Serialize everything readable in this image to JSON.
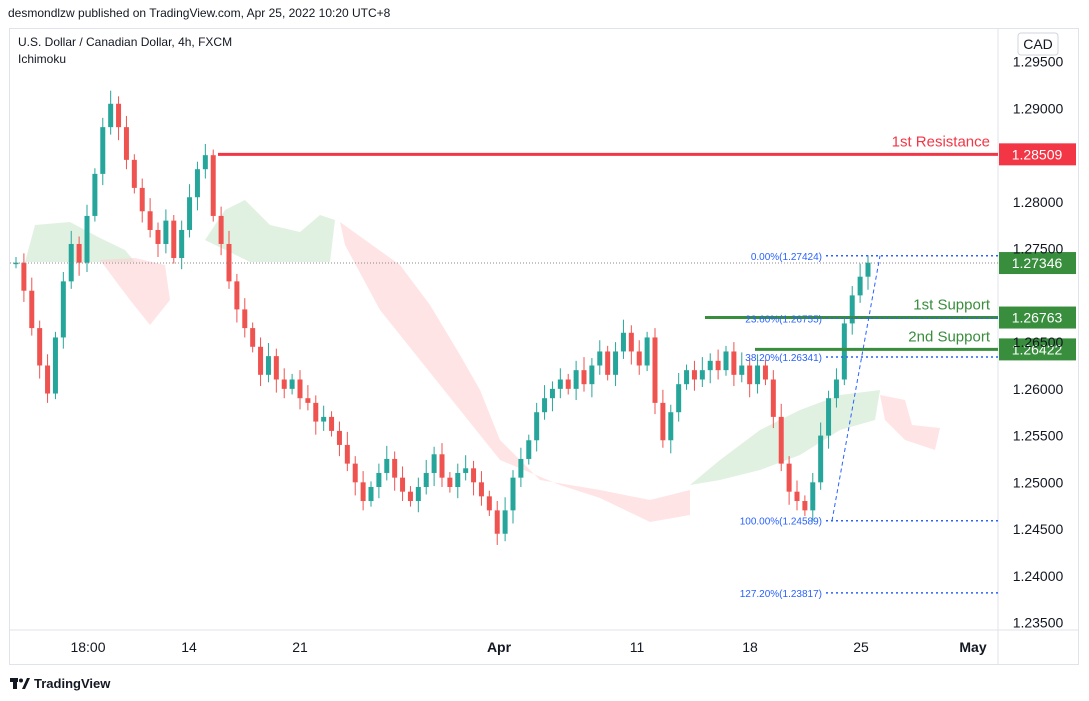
{
  "header": {
    "publish_line": "desmondlzw published on TradingView.com, Apr 25, 2022 10:20 UTC+8"
  },
  "footer": {
    "brand": "TradingView"
  },
  "chart_data": {
    "type": "candlestick",
    "symbol_line": "U.S. Dollar / Canadian Dollar, 4h, FXCM",
    "indicator": "Ichimoku",
    "currency": "CAD",
    "ylim": [
      1.2342,
      1.2985
    ],
    "y_ticks": [
      "1.29500",
      "1.29000",
      "1.28000",
      "1.27500",
      "1.26500",
      "1.26000",
      "1.25500",
      "1.25000",
      "1.24500",
      "1.24000",
      "1.23500"
    ],
    "x_ticks": [
      "18:00",
      "14",
      "21",
      "Apr",
      "11",
      "18",
      "25",
      "May"
    ],
    "colors": {
      "up": "#26a69a",
      "down": "#ef5350",
      "resistance": "#f23645",
      "support": "#388e3c",
      "fib": "#2962ff",
      "cloud_up": "#c8e6c9",
      "cloud_down": "#ffcdd2"
    },
    "levels": [
      {
        "label": "1st Resistance",
        "price": "1.28509",
        "value": 1.28509,
        "kind": "resistance"
      },
      {
        "label": "1st Support",
        "price": "1.26763",
        "value": 1.26763,
        "kind": "support"
      },
      {
        "label": "2nd Support",
        "price": "1.26422",
        "value": 1.26422,
        "kind": "support"
      }
    ],
    "current_price": {
      "label": "1.27346",
      "value": 1.27346
    },
    "fib_levels": [
      {
        "label": "0.00%(1.27424)",
        "value": 1.27424
      },
      {
        "label": "23.60%(1.26755)",
        "value": 1.26755
      },
      {
        "label": "38.20%(1.26341)",
        "value": 1.26341
      },
      {
        "label": "100.00%(1.24589)",
        "value": 1.24589
      },
      {
        "label": "127.20%(1.23817)",
        "value": 1.23817
      }
    ],
    "price_path": [
      1.2735,
      1.2705,
      1.2665,
      1.2625,
      1.2595,
      1.2655,
      1.2715,
      1.2755,
      1.2735,
      1.2785,
      1.283,
      1.288,
      1.2905,
      1.288,
      1.2845,
      1.2815,
      1.279,
      1.277,
      1.2755,
      1.278,
      1.274,
      1.277,
      1.2805,
      1.2835,
      1.285,
      1.2785,
      1.2755,
      1.2715,
      1.2685,
      1.2665,
      1.2645,
      1.2615,
      1.2635,
      1.261,
      1.26,
      1.261,
      1.259,
      1.2585,
      1.2565,
      1.257,
      1.2555,
      1.254,
      1.252,
      1.25,
      1.248,
      1.2495,
      1.251,
      1.2525,
      1.2505,
      1.249,
      1.248,
      1.2495,
      1.251,
      1.253,
      1.2505,
      1.2495,
      1.251,
      1.2515,
      1.25,
      1.2485,
      1.247,
      1.2445,
      1.247,
      1.2505,
      1.2525,
      1.2545,
      1.2575,
      1.259,
      1.26,
      1.261,
      1.26,
      1.262,
      1.2605,
      1.2625,
      1.264,
      1.2615,
      1.264,
      1.266,
      1.264,
      1.2625,
      1.2655,
      1.2585,
      1.2545,
      1.2575,
      1.2605,
      1.262,
      1.261,
      1.262,
      1.263,
      1.262,
      1.264,
      1.2615,
      1.2625,
      1.2605,
      1.2625,
      1.261,
      1.257,
      1.252,
      1.249,
      1.248,
      1.247,
      1.25,
      1.255,
      1.259,
      1.261,
      1.267,
      1.27,
      1.272,
      1.2735
    ]
  }
}
